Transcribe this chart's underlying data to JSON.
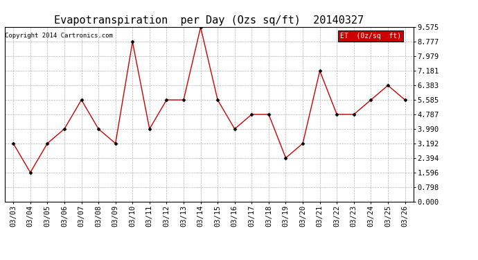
{
  "title": "Evapotranspiration  per Day (Ozs sq/ft)  20140327",
  "copyright": "Copyright 2014 Cartronics.com",
  "dates": [
    "03/03",
    "03/04",
    "03/05",
    "03/06",
    "03/07",
    "03/08",
    "03/09",
    "03/10",
    "03/11",
    "03/12",
    "03/13",
    "03/14",
    "03/15",
    "03/16",
    "03/17",
    "03/18",
    "03/19",
    "03/20",
    "03/21",
    "03/22",
    "03/23",
    "03/24",
    "03/25",
    "03/26"
  ],
  "values": [
    3.192,
    1.596,
    3.192,
    3.99,
    5.585,
    3.99,
    3.192,
    8.777,
    3.99,
    5.585,
    5.585,
    9.575,
    5.585,
    3.99,
    4.787,
    4.787,
    2.394,
    3.192,
    7.181,
    4.787,
    4.787,
    5.585,
    6.383,
    5.585
  ],
  "line_color": "#cc0000",
  "marker": "D",
  "marker_size": 2.5,
  "marker_color": "#000000",
  "legend_label": "ET  (0z/sq  ft)",
  "legend_bg": "#cc0000",
  "legend_text_color": "#ffffff",
  "yticks": [
    0.0,
    0.798,
    1.596,
    2.394,
    3.192,
    3.99,
    4.787,
    5.585,
    6.383,
    7.181,
    7.979,
    8.777,
    9.575
  ],
  "ylim": [
    0.0,
    9.575
  ],
  "background_color": "#ffffff",
  "grid_color": "#aaaaaa",
  "title_fontsize": 11,
  "copyright_fontsize": 6.5,
  "tick_fontsize": 7.5
}
